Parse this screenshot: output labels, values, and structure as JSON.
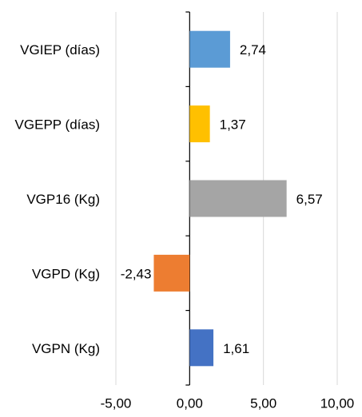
{
  "chart_data": {
    "type": "barh",
    "categories": [
      "VGIEP (días)",
      "VGEPP (días)",
      "VGP16 (Kg)",
      "VGPD (Kg)",
      "VGPN (Kg)"
    ],
    "values": [
      2.74,
      1.37,
      6.57,
      -2.43,
      1.61
    ],
    "value_labels": [
      "2,74",
      "1,37",
      "6,57",
      "-2,43",
      "1,61"
    ],
    "colors": [
      "#5b9bd5",
      "#ffc000",
      "#a5a5a5",
      "#ed7d31",
      "#4472c4"
    ],
    "xlim": [
      -5,
      10
    ],
    "xticks": [
      {
        "value": -5,
        "label": "-5,00"
      },
      {
        "value": 0,
        "label": "0,00"
      },
      {
        "value": 5,
        "label": "5,00"
      },
      {
        "value": 10,
        "label": "10,00"
      }
    ],
    "grid": true
  }
}
